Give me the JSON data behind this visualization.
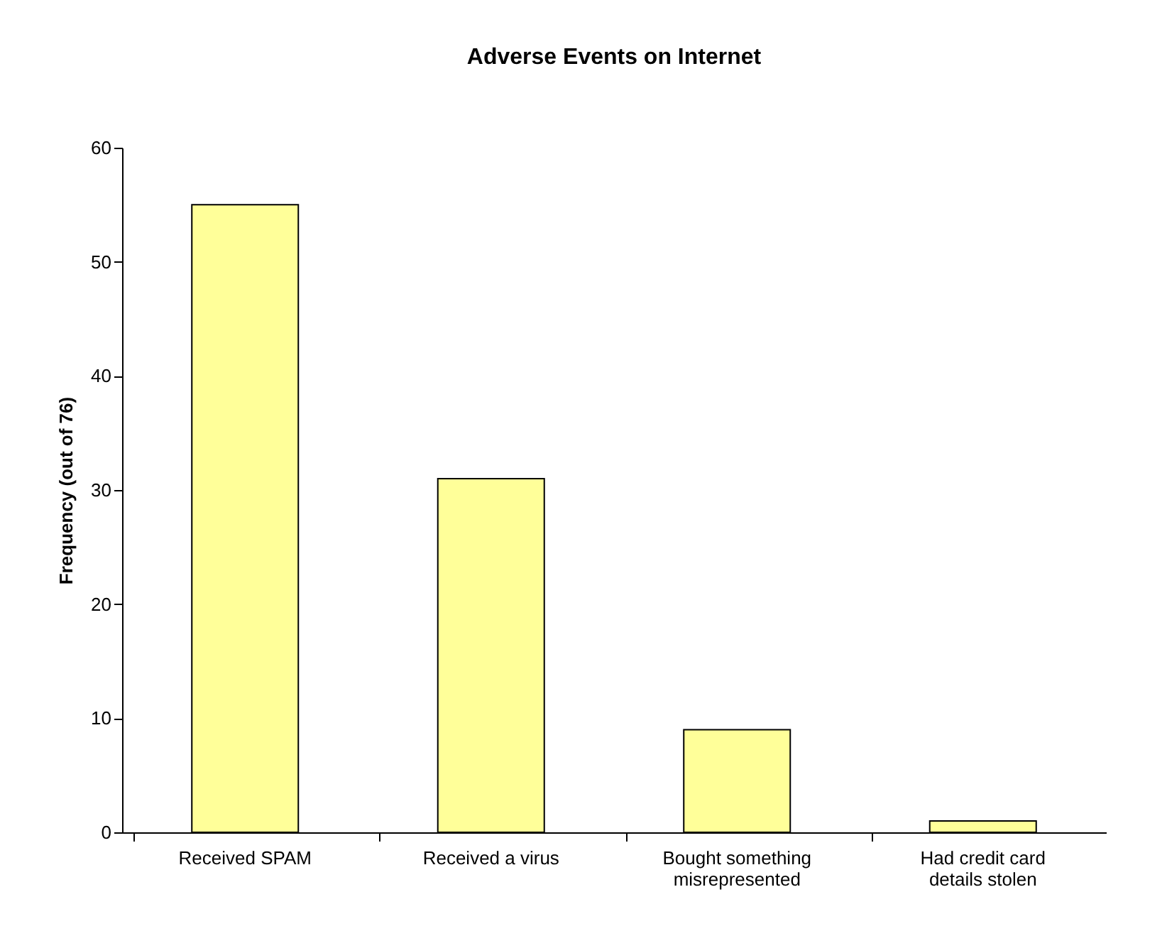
{
  "chart_data": {
    "type": "bar",
    "title": "Adverse Events on Internet",
    "ylabel": "Frequency (out of 76)",
    "categories": [
      "Received SPAM",
      "Received a virus",
      "Bought something misrepresented",
      "Had credit card details stolen"
    ],
    "values": [
      55,
      31,
      9,
      1
    ],
    "color": "#ffff99",
    "ylim": [
      0,
      60
    ],
    "yticks": [
      0,
      10,
      20,
      30,
      40,
      50,
      60
    ],
    "grid": false
  }
}
